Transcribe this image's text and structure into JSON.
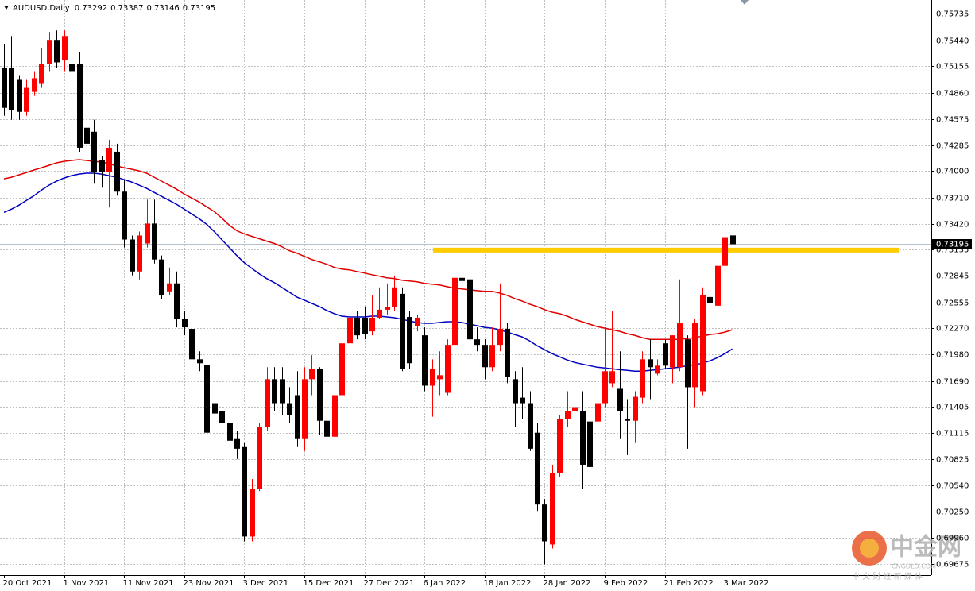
{
  "chart_data": {
    "type": "candlestick",
    "title": "AUDUSD,Daily",
    "categories": [
      "20 Oct 2021",
      null,
      null,
      null,
      null,
      null,
      null,
      null,
      "1 Nov 2021",
      null,
      null,
      null,
      null,
      null,
      null,
      null,
      "11 Nov 2021",
      null,
      null,
      null,
      null,
      null,
      null,
      null,
      "23 Nov 2021",
      null,
      null,
      null,
      null,
      null,
      null,
      null,
      "3 Dec 2021",
      null,
      null,
      null,
      null,
      null,
      null,
      null,
      "15 Dec 2021",
      null,
      null,
      null,
      null,
      null,
      null,
      null,
      "27 Dec 2021",
      null,
      null,
      null,
      null,
      null,
      null,
      null,
      "6 Jan 2022",
      null,
      null,
      null,
      null,
      null,
      null,
      null,
      "18 Jan 2022",
      null,
      null,
      null,
      null,
      null,
      null,
      null,
      "28 Jan 2022",
      null,
      null,
      null,
      null,
      null,
      null,
      null,
      "9 Feb 2022",
      null,
      null,
      null,
      null,
      null,
      null,
      null,
      "21 Feb 2022",
      null,
      null,
      null,
      null,
      null,
      null,
      null,
      "3 Mar 2022",
      null
    ],
    "open": [
      0.75137,
      0.75137,
      0.75005,
      0.74653,
      0.74873,
      0.74961,
      0.75181,
      0.75445,
      0.75225,
      0.75181,
      0.75181,
      0.74478,
      0.74434,
      0.74126,
      0.73994,
      0.74214,
      0.73774,
      0.73247,
      0.72895,
      0.73203,
      0.73423,
      0.73027,
      0.72676,
      0.72764,
      0.72368,
      0.72263,
      0.71928,
      0.71867,
      0.71445,
      0.71357,
      0.71225,
      0.7105,
      0.70962,
      0.69977,
      0.70505,
      0.71181,
      0.71709,
      0.71709,
      0.71445,
      0.71533,
      0.7105,
      0.71709,
      0.71823,
      0.71251,
      0.71076,
      0.71533,
      0.72104,
      0.72386,
      0.72386,
      0.72236,
      0.72386,
      0.72474,
      0.725,
      0.72649,
      0.72394,
      0.72298,
      0.72192,
      0.71638,
      0.71709,
      0.71559,
      0.72087,
      0.72825,
      0.72808,
      0.72148,
      0.72087,
      0.71841,
      0.72087,
      0.72263,
      0.71709,
      0.71506,
      0.71445,
      0.7112,
      0.70329,
      0.69889,
      0.7068,
      0.71269,
      0.71357,
      0.71357,
      0.71243,
      0.71243,
      0.71445,
      0.71665,
      0.71603,
      0.71269,
      0.71251,
      0.71506,
      0.71928,
      0.7177,
      0.72104,
      0.71841,
      0.71841,
      0.72148,
      0.71621,
      0.71577,
      0.72614,
      0.72518,
      0.72957,
      0.73292
    ],
    "high": [
      0.75401,
      0.75488,
      0.75049,
      0.75005,
      0.75093,
      0.75357,
      0.75532,
      0.7555,
      0.7555,
      0.75269,
      0.75313,
      0.74566,
      0.74566,
      0.7417,
      0.74346,
      0.74302,
      0.73906,
      0.73291,
      0.73335,
      0.73687,
      0.73687,
      0.73071,
      0.72939,
      0.72895,
      0.72456,
      0.72324,
      0.72016,
      0.71885,
      0.71665,
      0.71709,
      0.71709,
      0.71138,
      0.71006,
      0.7061,
      0.71225,
      0.71841,
      0.71841,
      0.71841,
      0.71621,
      0.71797,
      0.71841,
      0.71972,
      0.71841,
      0.71533,
      0.71972,
      0.72192,
      0.725,
      0.72456,
      0.725,
      0.72632,
      0.7272,
      0.72764,
      0.72851,
      0.7272,
      0.72456,
      0.72412,
      0.7228,
      0.71928,
      0.72016,
      0.72148,
      0.72895,
      0.73142,
      0.72895,
      0.7228,
      0.72148,
      0.7228,
      0.72764,
      0.72324,
      0.71797,
      0.71841,
      0.71577,
      0.71225,
      0.7039,
      0.70768,
      0.71313,
      0.71577,
      0.71665,
      0.71577,
      0.71489,
      0.71577,
      0.7228,
      0.72456,
      0.72016,
      0.71489,
      0.71577,
      0.72016,
      0.72148,
      0.71928,
      0.72148,
      0.72192,
      0.72808,
      0.72192,
      0.72368,
      0.7272,
      0.72895,
      0.72983,
      0.7344,
      0.73387
    ],
    "low": [
      0.74609,
      0.74566,
      0.74566,
      0.74609,
      0.74829,
      0.74917,
      0.75093,
      0.75137,
      0.75093,
      0.75049,
      0.74214,
      0.7417,
      0.73862,
      0.73818,
      0.73599,
      0.7373,
      0.73159,
      0.72851,
      0.72808,
      0.73159,
      0.72983,
      0.72588,
      0.72632,
      0.7228,
      0.72192,
      0.71885,
      0.71797,
      0.71094,
      0.71269,
      0.7061,
      0.70962,
      0.7083,
      0.69924,
      0.69924,
      0.70478,
      0.71138,
      0.71357,
      0.71313,
      0.71225,
      0.70962,
      0.70918,
      0.71533,
      0.71094,
      0.70812,
      0.7105,
      0.71489,
      0.72016,
      0.72148,
      0.72148,
      0.72192,
      0.72368,
      0.72412,
      0.72456,
      0.71797,
      0.71823,
      0.72236,
      0.71577,
      0.71296,
      0.71533,
      0.71533,
      0.7206,
      0.72676,
      0.71972,
      0.72016,
      0.71709,
      0.71797,
      0.72016,
      0.71665,
      0.71181,
      0.71269,
      0.70918,
      0.70258,
      0.69669,
      0.69845,
      0.70628,
      0.71181,
      0.71313,
      0.70505,
      0.70654,
      0.71181,
      0.71401,
      0.71621,
      0.7105,
      0.70874,
      0.71006,
      0.71445,
      0.71489,
      0.71753,
      0.71823,
      0.71665,
      0.71797,
      0.70944,
      0.71401,
      0.71533,
      0.72412,
      0.72456,
      0.72895,
      0.73146
    ],
    "close": [
      0.74697,
      0.74671,
      0.74653,
      0.74917,
      0.75023,
      0.75181,
      0.75445,
      0.75198,
      0.75488,
      0.75093,
      0.74258,
      0.74302,
      0.73994,
      0.73994,
      0.74258,
      0.73774,
      0.73247,
      0.72895,
      0.73291,
      0.73423,
      0.73027,
      0.72632,
      0.72764,
      0.72368,
      0.7228,
      0.71928,
      0.71885,
      0.7112,
      0.71331,
      0.71225,
      0.71032,
      0.70944,
      0.69977,
      0.70505,
      0.71181,
      0.71709,
      0.71445,
      0.71445,
      0.71313,
      0.7105,
      0.71709,
      0.71823,
      0.71251,
      0.71076,
      0.71533,
      0.72104,
      0.72386,
      0.72192,
      0.7221,
      0.72386,
      0.72474,
      0.725,
      0.7272,
      0.71823,
      0.71885,
      0.72386,
      0.71638,
      0.71823,
      0.71753,
      0.72087,
      0.72825,
      0.7279,
      0.72148,
      0.72087,
      0.71841,
      0.72087,
      0.72263,
      0.71735,
      0.71445,
      0.71445,
      0.70944,
      0.70329,
      0.69924,
      0.7068,
      0.71269,
      0.71357,
      0.71401,
      0.70768,
      0.70742,
      0.71445,
      0.71797,
      0.71797,
      0.71357,
      0.71251,
      0.71515,
      0.71928,
      0.71841,
      0.71858,
      0.71858,
      0.72192,
      0.72324,
      0.71621,
      0.72324,
      0.72632,
      0.72544,
      0.72957,
      0.73273,
      0.73195
    ],
    "up_color": "#ff0000",
    "down_color": "#000000",
    "moving_averages": [
      {
        "color": "#e00000",
        "values": [
          0.73915,
          0.73933,
          0.73959,
          0.73985,
          0.74012,
          0.74038,
          0.74064,
          0.74091,
          0.74108,
          0.74117,
          0.74126,
          0.74117,
          0.74108,
          0.741,
          0.74082,
          0.74056,
          0.74038,
          0.74021,
          0.74003,
          0.73977,
          0.73933,
          0.73889,
          0.73845,
          0.73801,
          0.73748,
          0.73704,
          0.7366,
          0.73607,
          0.73555,
          0.73484,
          0.73405,
          0.73344,
          0.73309,
          0.73282,
          0.73256,
          0.73229,
          0.73203,
          0.73168,
          0.73124,
          0.73098,
          0.73062,
          0.73027,
          0.73001,
          0.72974,
          0.72939,
          0.72922,
          0.72913,
          0.72895,
          0.72878,
          0.7286,
          0.72843,
          0.72825,
          0.72816,
          0.72799,
          0.7279,
          0.72781,
          0.72764,
          0.72755,
          0.72746,
          0.72728,
          0.72711,
          0.72702,
          0.72693,
          0.72684,
          0.72676,
          0.72676,
          0.72658,
          0.72632,
          0.72597,
          0.7257,
          0.72535,
          0.72509,
          0.72474,
          0.72447,
          0.7243,
          0.72403,
          0.72368,
          0.72342,
          0.72315,
          0.72289,
          0.72271,
          0.72254,
          0.72236,
          0.7221,
          0.72192,
          0.72166,
          0.72148,
          0.72148,
          0.72148,
          0.72148,
          0.72148,
          0.72157,
          0.72166,
          0.72183,
          0.72201,
          0.7221,
          0.72227,
          0.72254
        ]
      },
      {
        "color": "#0000c0",
        "values": [
          0.73546,
          0.73581,
          0.73625,
          0.73678,
          0.7373,
          0.73792,
          0.73845,
          0.73889,
          0.73924,
          0.7395,
          0.73968,
          0.73977,
          0.73977,
          0.73968,
          0.7395,
          0.73933,
          0.73906,
          0.7388,
          0.73845,
          0.7381,
          0.73766,
          0.73722,
          0.73678,
          0.73634,
          0.73581,
          0.73528,
          0.73475,
          0.73414,
          0.73335,
          0.73247,
          0.73159,
          0.73071,
          0.72992,
          0.7293,
          0.72869,
          0.72816,
          0.72772,
          0.7272,
          0.72667,
          0.72614,
          0.72579,
          0.72544,
          0.72509,
          0.72465,
          0.7243,
          0.72403,
          0.72394,
          0.72394,
          0.72394,
          0.72403,
          0.72403,
          0.72394,
          0.72386,
          0.72368,
          0.7235,
          0.72333,
          0.72324,
          0.72324,
          0.72333,
          0.72342,
          0.72342,
          0.72333,
          0.72315,
          0.72298,
          0.7228,
          0.72271,
          0.72254,
          0.72227,
          0.72201,
          0.72175,
          0.72131,
          0.72078,
          0.72034,
          0.7199,
          0.71955,
          0.7192,
          0.71893,
          0.71876,
          0.71858,
          0.71841,
          0.71832,
          0.71823,
          0.71814,
          0.71806,
          0.71797,
          0.71797,
          0.71806,
          0.71814,
          0.71823,
          0.71832,
          0.71841,
          0.71858,
          0.71867,
          0.71885,
          0.71911,
          0.71946,
          0.7199,
          0.72043
        ]
      }
    ],
    "level": {
      "value": 0.7313,
      "color": "#ffcc00"
    },
    "ylim": [
      0.69552,
      0.75884
    ],
    "yticks": [
      0.75735,
      {
        "value": 0.7544,
        "label": "0.75440"
      },
      0.75155,
      {
        "value": 0.7486,
        "label": "0.74860"
      },
      0.74575,
      0.74285,
      {
        "value": 0.74,
        "label": "0.74000"
      },
      {
        "value": 0.7371,
        "label": "0.73710"
      },
      {
        "value": 0.7342,
        "label": "0.73420"
      },
      0.73135,
      0.72845,
      0.72555,
      {
        "value": 0.7227,
        "label": "0.72270"
      },
      {
        "value": 0.7198,
        "label": "0.71980"
      },
      {
        "value": 0.7169,
        "label": "0.71690"
      },
      0.71405,
      0.71115,
      0.70825,
      {
        "value": 0.7054,
        "label": "0.70540"
      },
      {
        "value": 0.7025,
        "label": "0.70250"
      },
      {
        "value": 0.6996,
        "label": "0.69960"
      },
      0.69675
    ],
    "grid": true
  },
  "watermark": {
    "name": "中金网",
    "domain": "CNGOLD.COM",
    "tagline": "中 文 财 经 新 媒 体"
  }
}
